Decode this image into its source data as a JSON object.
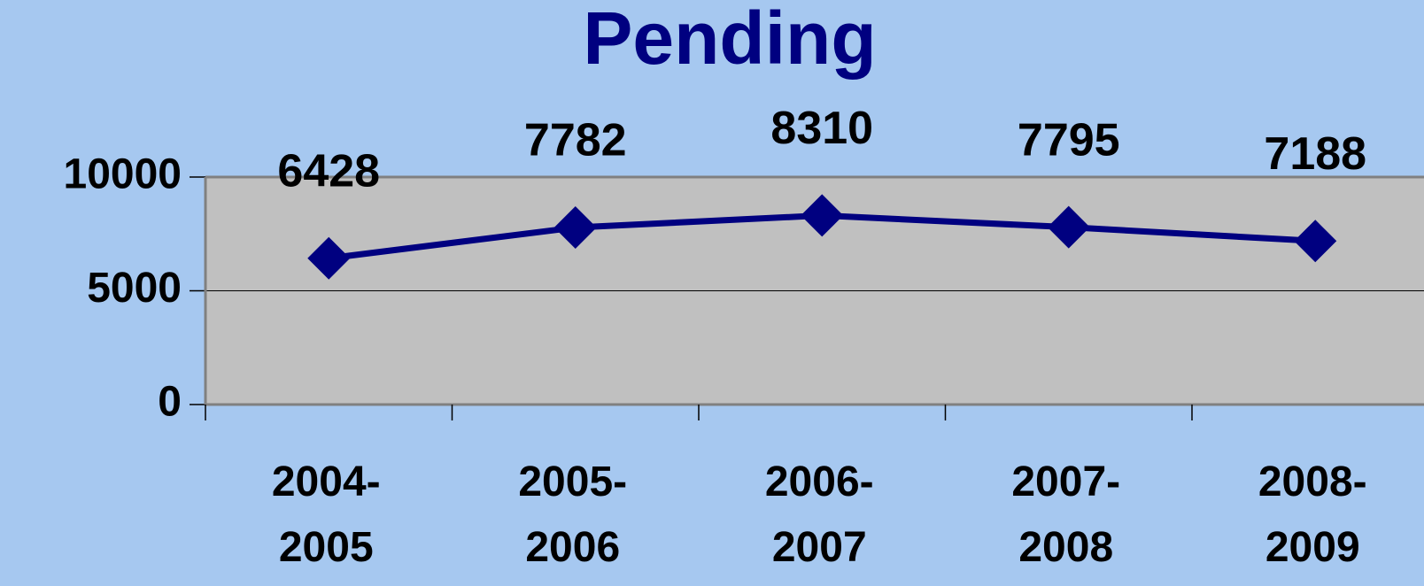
{
  "chart_data": {
    "type": "line",
    "title": "Pending",
    "categories": [
      "2004-2005",
      "2005-2006",
      "2006-2007",
      "2007-2008",
      "2008-2009"
    ],
    "series": [
      {
        "name": "Pending",
        "color": "#000080",
        "values": [
          6428,
          7782,
          8310,
          7795,
          7188
        ]
      }
    ],
    "ylim": [
      0,
      10000
    ],
    "yticks": [
      0,
      5000,
      10000
    ],
    "grid": true
  }
}
